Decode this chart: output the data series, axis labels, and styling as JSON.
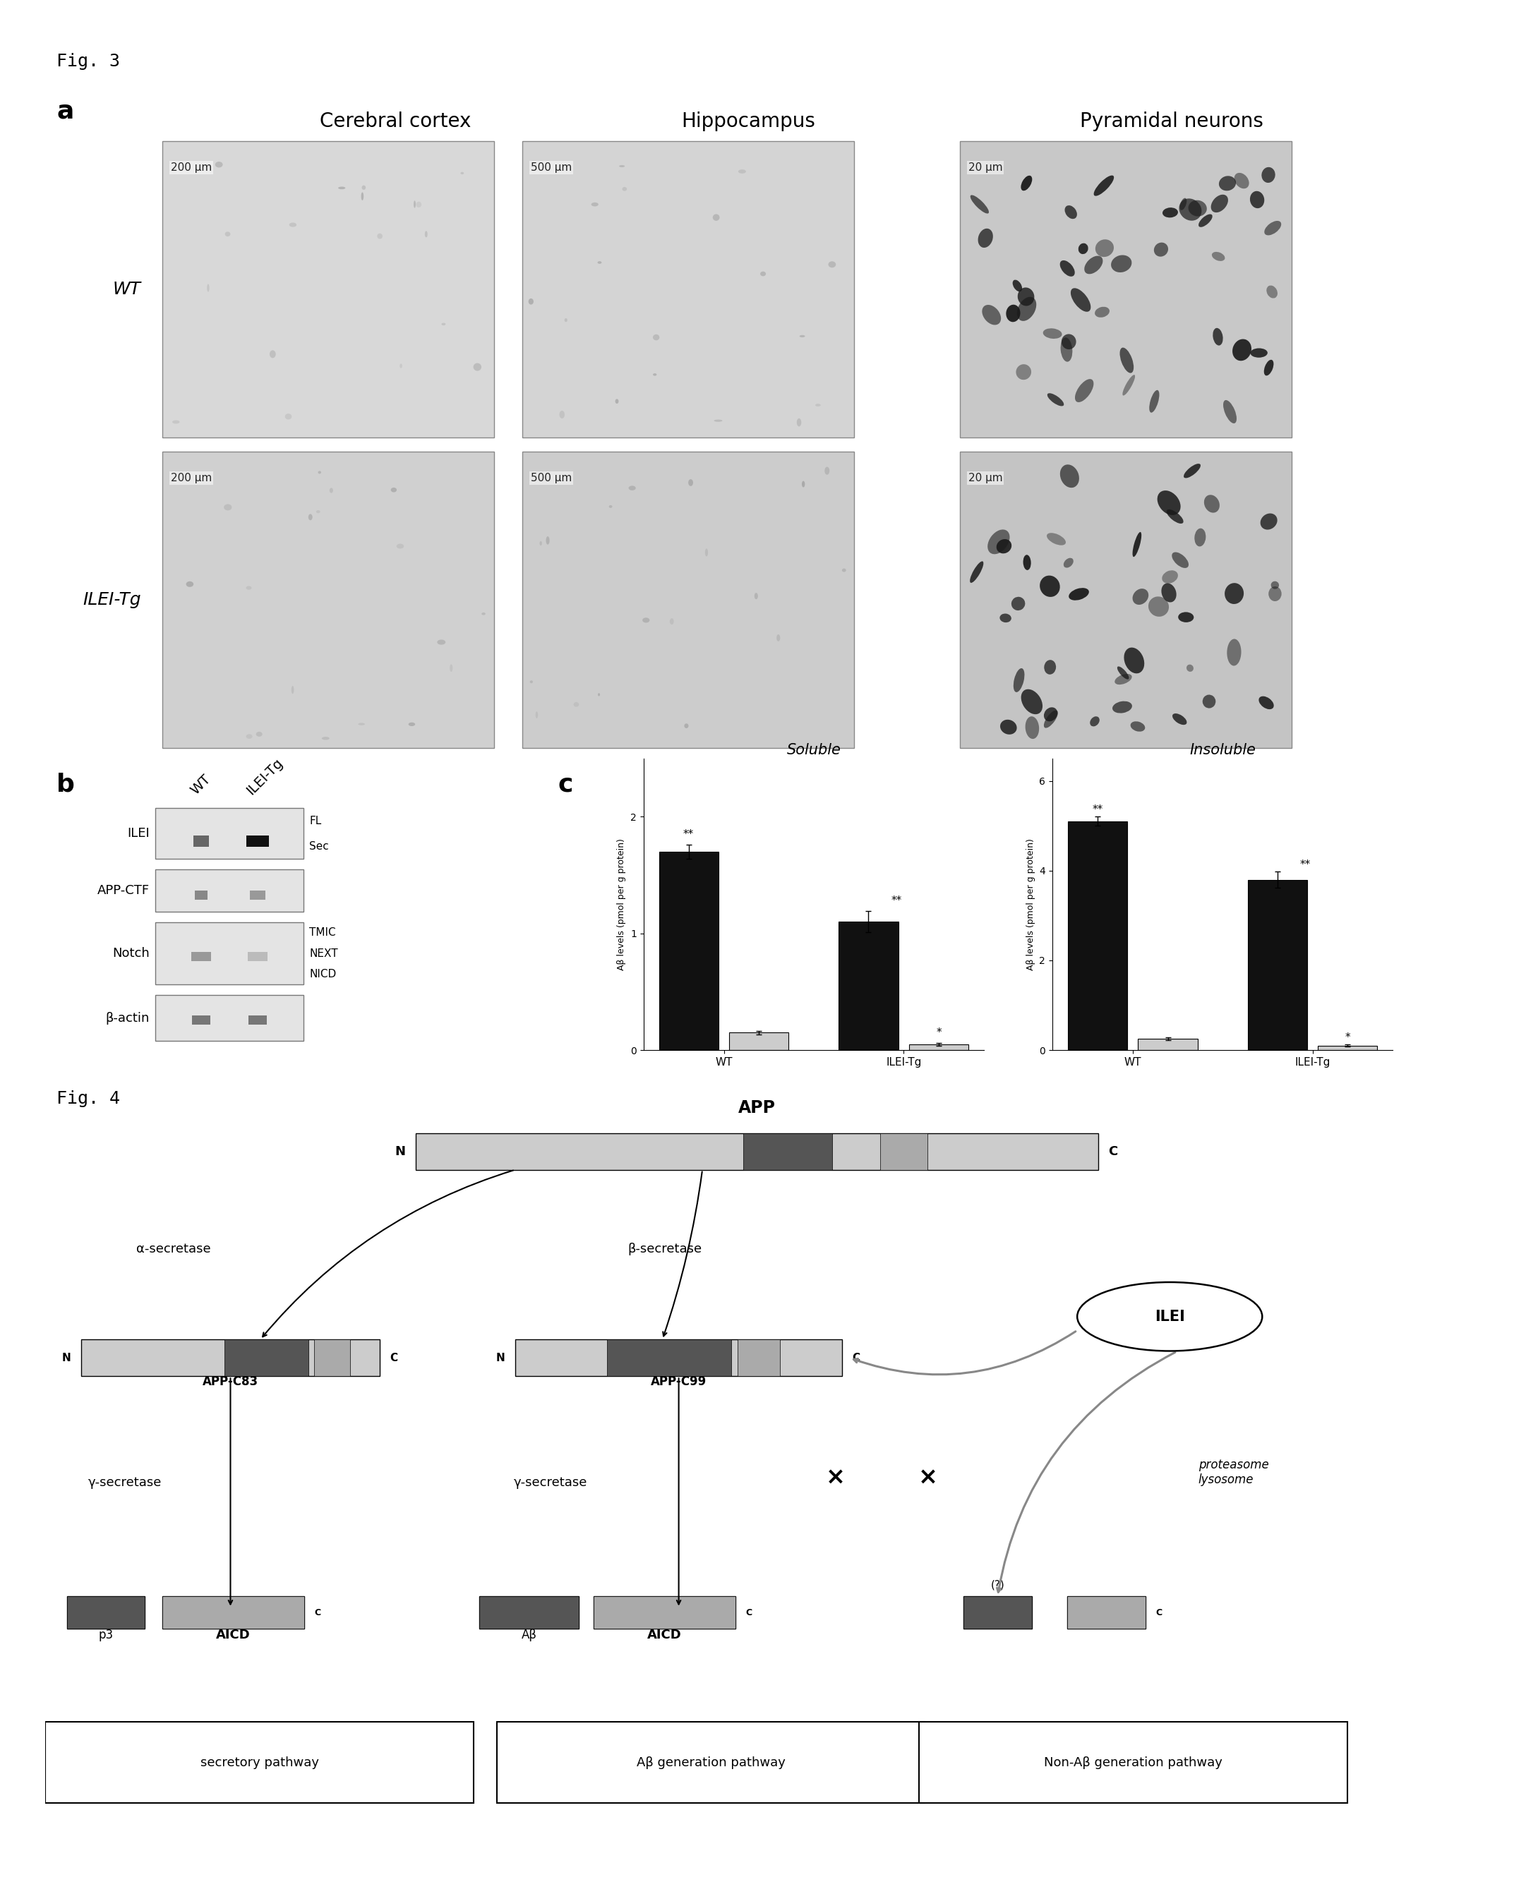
{
  "fig_label": "Fig. 3",
  "fig4_label": "Fig. 4",
  "panel_a_label": "a",
  "panel_b_label": "b",
  "panel_c_label": "c",
  "col_headers": [
    "Cerebral cortex",
    "Hippocampus",
    "Pyramidal neurons"
  ],
  "row_labels": [
    "WT",
    "ILEI-Tg"
  ],
  "scale_labels_row1": [
    "200 μm",
    "500 μm",
    "20 μm"
  ],
  "scale_labels_row2": [
    "200 μm",
    "500 μm",
    "20 μm"
  ],
  "wb_labels": [
    "ILEI",
    "APP-CTF",
    "Notch",
    "β-actin"
  ],
  "wb_col_labels": [
    "WT",
    "ILEI-Tg"
  ],
  "soluble_title": "Soluble",
  "insoluble_title": "Insoluble",
  "soluble_ylabel": "Aβ levels (pmol per g protein)",
  "insoluble_ylabel": "Aβ levels (pmol per g protein)",
  "bar_xlabel_groups": [
    "WT",
    "ILEI-Tg"
  ],
  "soluble_wt_black": 1.7,
  "soluble_wt_gray": 0.15,
  "soluble_ilei_black": 1.1,
  "soluble_ilei_gray": 0.05,
  "insoluble_wt_black": 5.1,
  "insoluble_wt_gray": 0.25,
  "insoluble_ilei_black": 3.8,
  "insoluble_ilei_gray": 0.1,
  "soluble_ylim": [
    0,
    2.5
  ],
  "insoluble_ylim": [
    0,
    6.5
  ],
  "soluble_yticks": [
    0,
    1.0,
    2.0
  ],
  "insoluble_yticks": [
    0,
    2.0,
    4.0,
    6.0
  ],
  "bar_color_black": "#111111",
  "bar_color_gray": "#cccccc",
  "bg_color": "#ffffff",
  "fig4_pathway": {
    "app_label": "APP",
    "alpha_secretase": "α-secretase",
    "beta_secretase": "β-secretase",
    "gamma_secretase_left": "γ-secretase",
    "gamma_secretase_mid": "γ-secretase",
    "ilei_label": "ILEI",
    "proteasome_lysosome": "proteasome\nlysosome",
    "app_c83": "APP-C83",
    "app_c99": "APP-C99",
    "p3_label": "p3",
    "aicd_left": "AICD",
    "abeta_label": "Aβ",
    "aicd_mid": "AICD",
    "question_mark": "(?)",
    "pathway1": "secretory pathway",
    "pathway2": "Aβ generation pathway",
    "pathway3": "Non-Aβ generation pathway"
  }
}
